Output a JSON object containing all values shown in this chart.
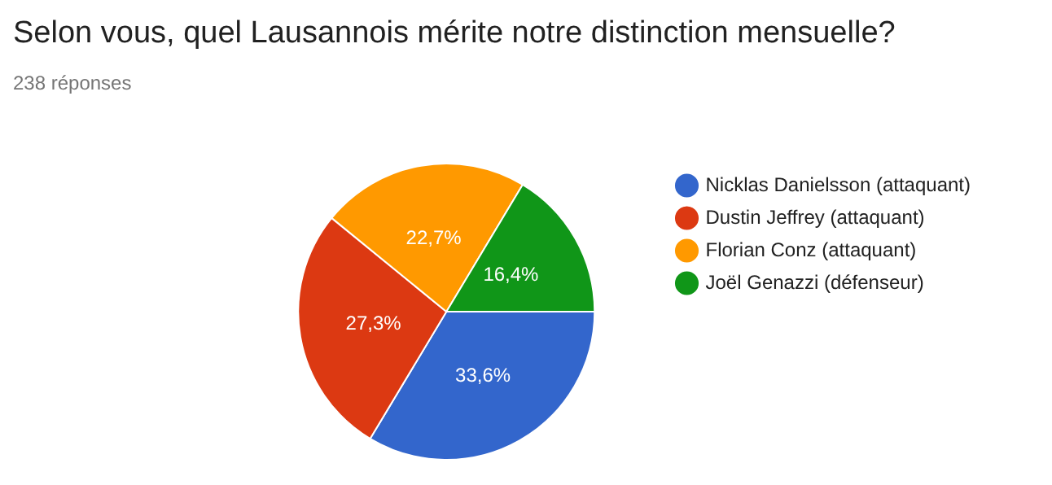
{
  "chart_data": {
    "type": "pie",
    "title": "Selon vous, quel Lausannois mérite notre distinction mensuelle?",
    "subtitle": "238 réponses",
    "categories": [
      "Nicklas Danielsson (attaquant)",
      "Dustin Jeffrey (attaquant)",
      "Florian Conz (attaquant)",
      "Joël Genazzi (défenseur)"
    ],
    "values": [
      33.6,
      27.3,
      22.7,
      16.4
    ],
    "value_labels": [
      "33,6%",
      "27,3%",
      "22,7%",
      "16,4%"
    ],
    "colors": [
      "#3366cc",
      "#dc3912",
      "#ff9900",
      "#109618"
    ],
    "legend": "right"
  }
}
